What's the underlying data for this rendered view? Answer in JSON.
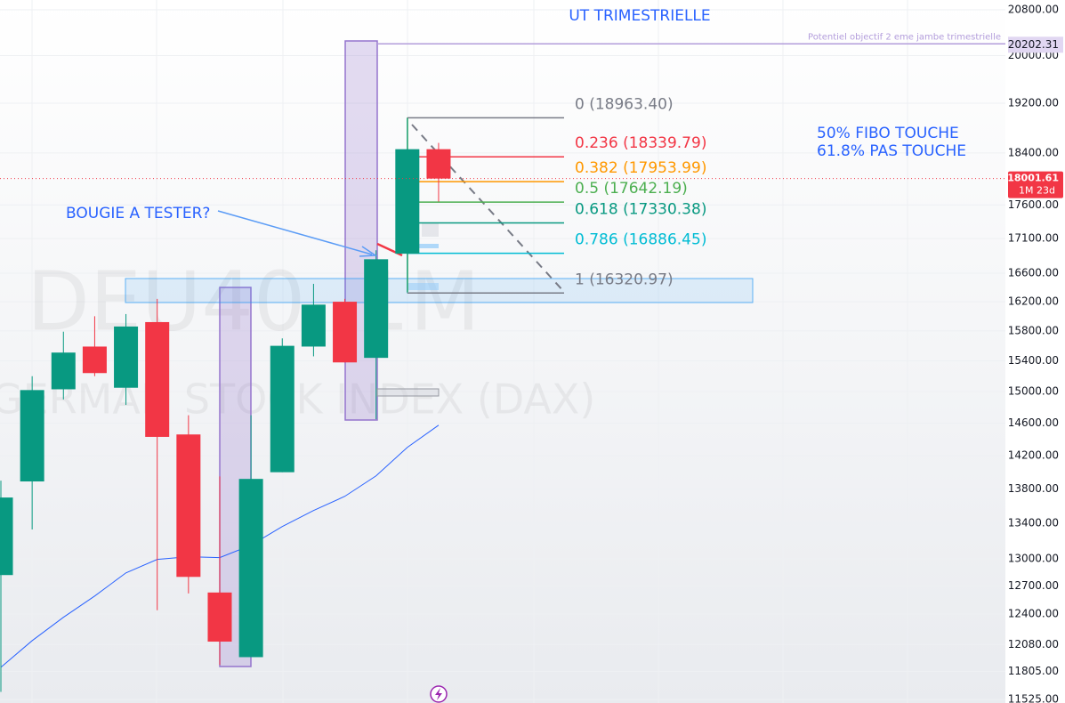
{
  "chart_data": {
    "type": "candlestick",
    "symbol": "DEU40, 1M",
    "description": "GERMAN STOCK INDEX (DAX)",
    "log_scale": true,
    "grid": true,
    "ylim": [
      11490,
      20975
    ],
    "yticks": [
      {
        "value": 20800,
        "label": "20800.00"
      },
      {
        "value": 20000,
        "label": "20000.00"
      },
      {
        "value": 19200,
        "label": "19200.00"
      },
      {
        "value": 18400,
        "label": "18400.00"
      },
      {
        "value": 17600,
        "label": "17600.00"
      },
      {
        "value": 17100,
        "label": "17100.00"
      },
      {
        "value": 16600,
        "label": "16600.00"
      },
      {
        "value": 16200,
        "label": "16200.00"
      },
      {
        "value": 15800,
        "label": "15800.00"
      },
      {
        "value": 15400,
        "label": "15400.00"
      },
      {
        "value": 15000,
        "label": "15000.00"
      },
      {
        "value": 14600,
        "label": "14600.00"
      },
      {
        "value": 14200,
        "label": "14200.00"
      },
      {
        "value": 13800,
        "label": "13800.00"
      },
      {
        "value": 13400,
        "label": "13400.00"
      },
      {
        "value": 13000,
        "label": "13000.00"
      },
      {
        "value": 12700,
        "label": "12700.00"
      },
      {
        "value": 12400,
        "label": "12400.00"
      },
      {
        "value": 12080,
        "label": "12080.00"
      },
      {
        "value": 11805,
        "label": "11805.00"
      },
      {
        "value": 11525,
        "label": "11525.00"
      }
    ],
    "up_color": "#089981",
    "down_color": "#f23645",
    "candles": {
      "open": [
        12820,
        13890,
        15030,
        15590,
        15050,
        15920,
        14460,
        12630,
        11950,
        14000,
        15590,
        16200,
        15440,
        16880,
        18460
      ],
      "high": [
        13900,
        15200,
        15790,
        16000,
        16030,
        16240,
        14700,
        13950,
        14700,
        15700,
        16450,
        16240,
        16930,
        18960,
        18560
      ],
      "low": [
        11600,
        13330,
        14900,
        15200,
        14830,
        12440,
        12620,
        11870,
        11950,
        14000,
        15460,
        15380,
        14650,
        16320,
        17650
      ],
      "close": [
        13700,
        15020,
        15510,
        15240,
        15860,
        14430,
        12800,
        12110,
        13920,
        15600,
        16160,
        15380,
        16800,
        18460,
        18001.61
      ]
    },
    "moving_average": {
      "color": "#2962ff",
      "values": [
        11847,
        12120,
        12365,
        12592,
        12844,
        12993,
        13023,
        13013,
        13152,
        13364,
        13548,
        13714,
        13956,
        14301,
        14575
      ]
    },
    "fibonacci": [
      {
        "value": 18963.4,
        "label": "0 (18963.40)",
        "color": "#787b86"
      },
      {
        "value": 18339.79,
        "label": "0.236 (18339.79)",
        "color": "#f23645"
      },
      {
        "value": 17953.99,
        "label": "0.382 (17953.99)",
        "color": "#ff9800"
      },
      {
        "value": 17642.19,
        "label": "0.5 (17642.19)",
        "color": "#4caf50"
      },
      {
        "value": 17330.38,
        "label": "0.618 (17330.38)",
        "color": "#089981"
      },
      {
        "value": 16886.45,
        "label": "0.786 (16886.45)",
        "color": "#00bcd4"
      },
      {
        "value": 16320.97,
        "label": "1 (16320.97)",
        "color": "#787b86"
      }
    ],
    "target": {
      "value": 20202.31,
      "text": "Potentiel objectif 2 eme jambe trimestrielle",
      "color": "#b39ddb"
    },
    "last_price": {
      "value": 18001.61,
      "countdown": "1M 23d"
    },
    "annotations": {
      "title": "UT TRIMESTRIELLE",
      "note_line1": "50% FIBO TOUCHE",
      "note_line2": "61.8% PAS TOUCHE",
      "arrow_label": "BOUGIE A TESTER?"
    }
  }
}
